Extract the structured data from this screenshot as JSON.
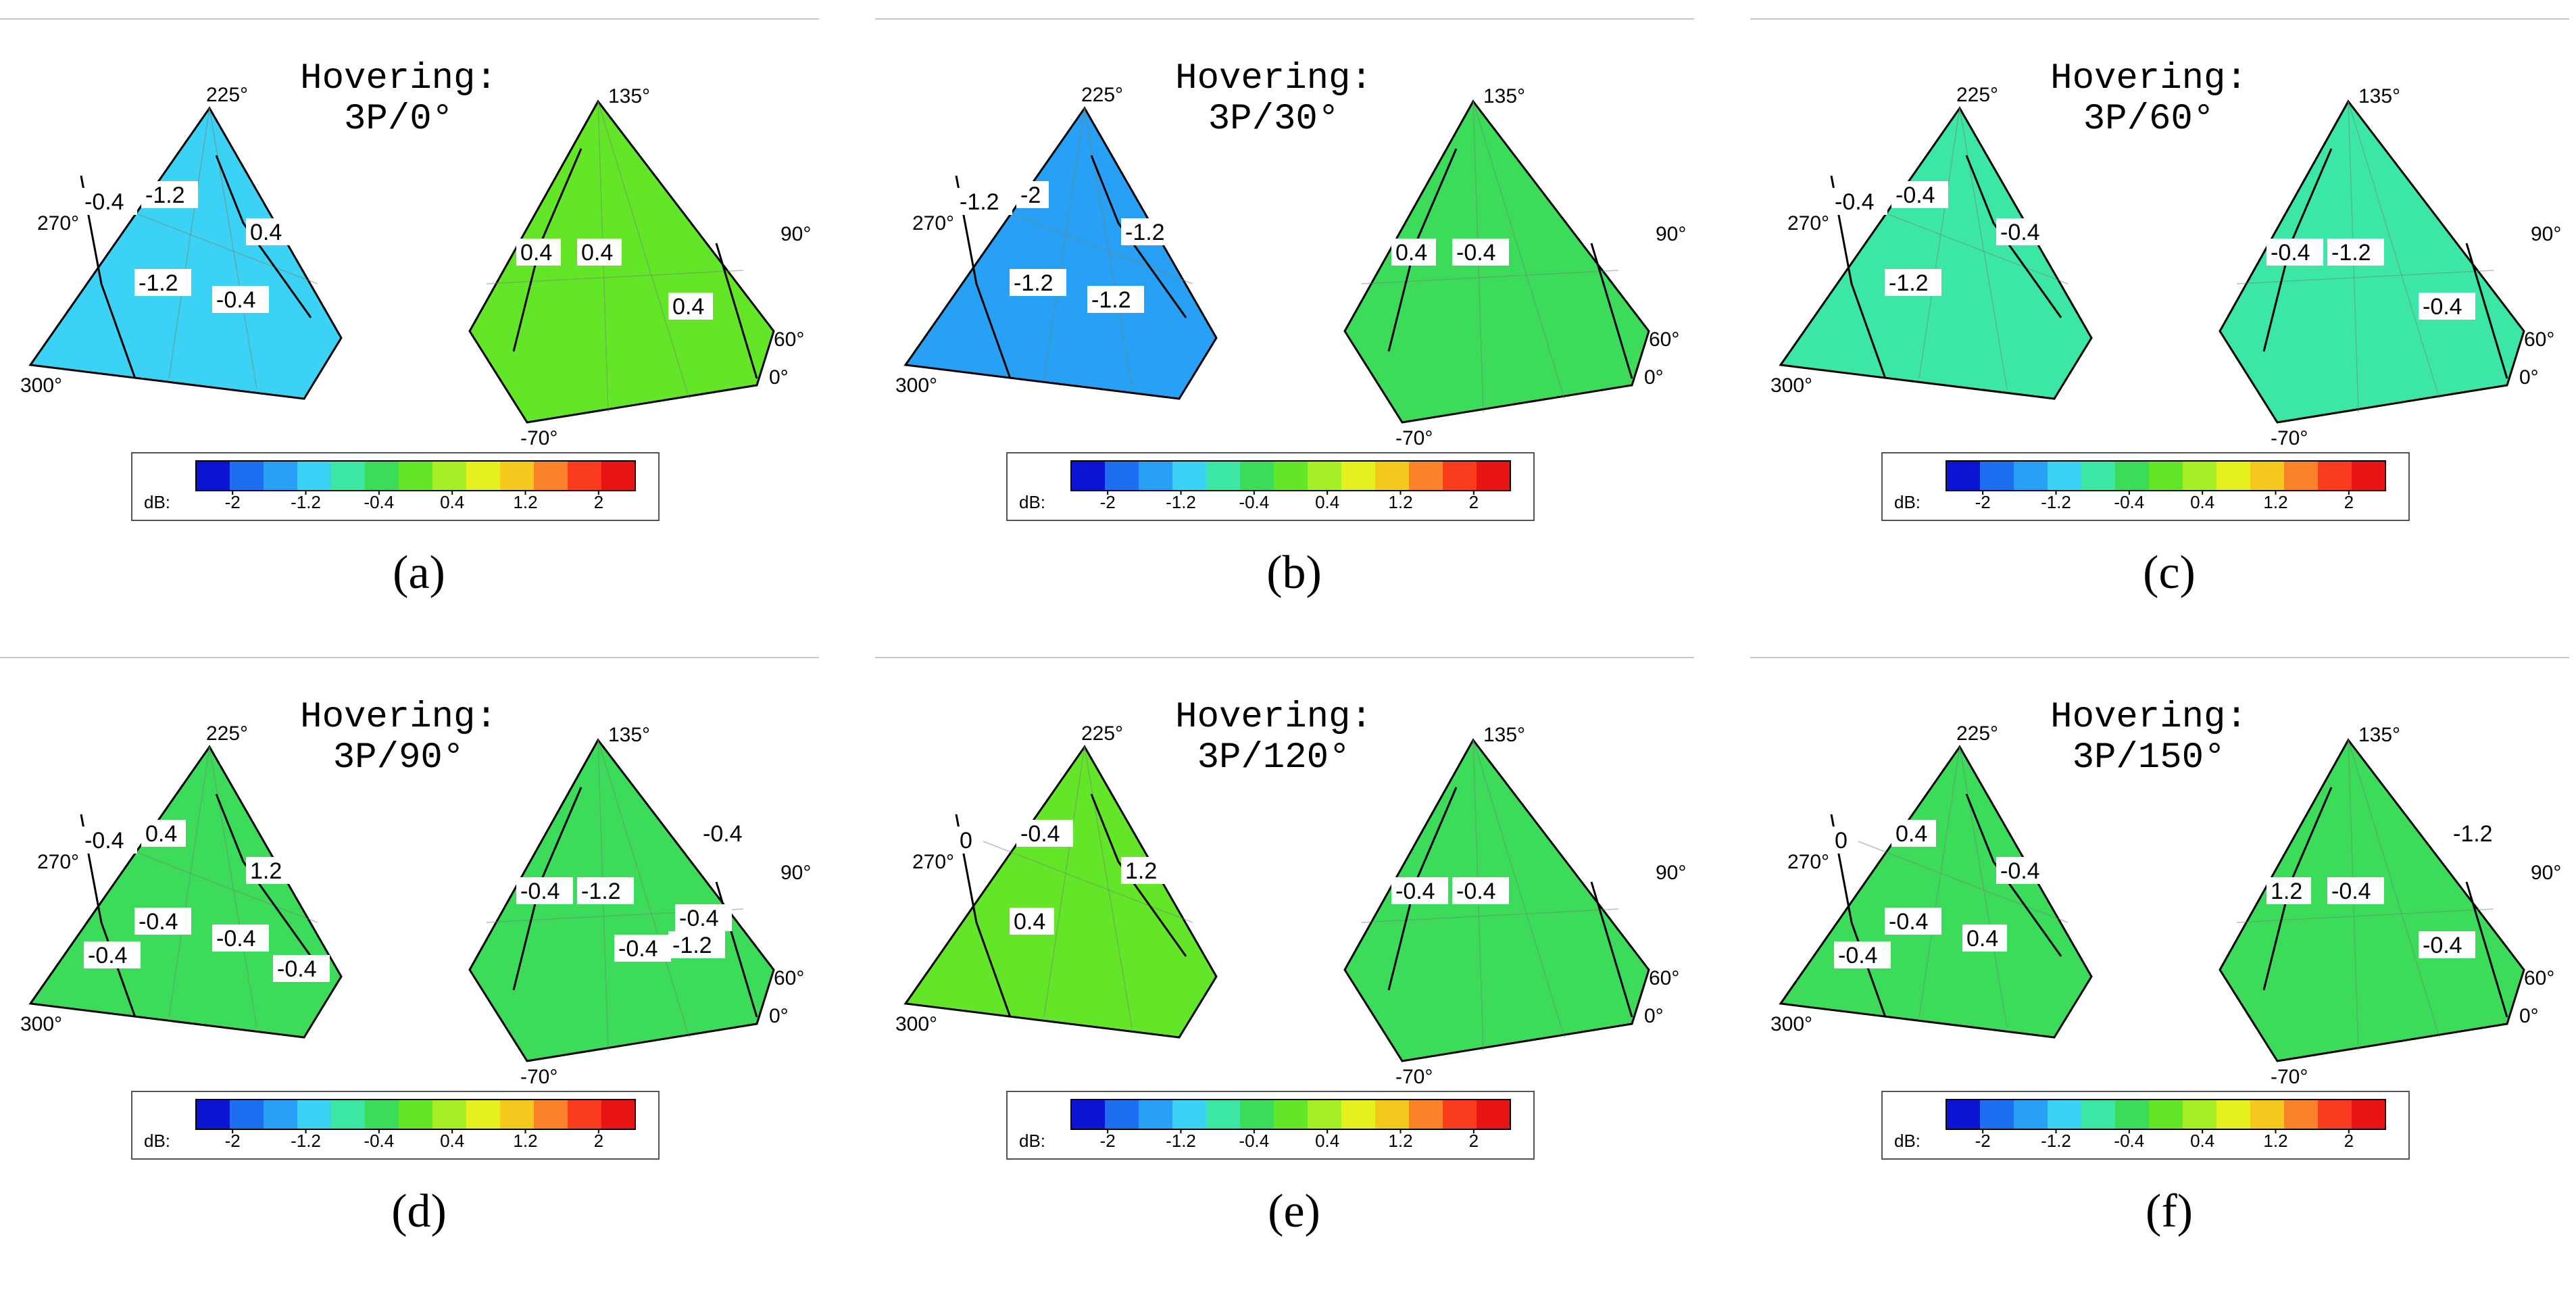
{
  "figure": {
    "colorbar": {
      "unit_label": "dB:",
      "tick_labels": [
        "-2",
        "-1.2",
        "-0.4",
        "0.4",
        "1.2",
        "2"
      ],
      "tick_values": [
        -2,
        -1.2,
        -0.4,
        0.4,
        1.2,
        2
      ],
      "range": [
        -2.4,
        2.4
      ],
      "step": 0.4,
      "colors": [
        "#0a14d2",
        "#1e6ef0",
        "#28a0f5",
        "#3cd2f5",
        "#3ce6a5",
        "#3cdc5a",
        "#64e628",
        "#a5ee28",
        "#e6f01e",
        "#f5c81e",
        "#fa8228",
        "#fa3c1e",
        "#e61414"
      ]
    }
  },
  "chart_data": [
    {
      "type": "heatmap",
      "panel": "a",
      "title_line1": "Hovering:",
      "title_line2": "3P/0°",
      "caption": "(a)",
      "left_angle_labels": [
        "225°",
        "270°",
        "300°"
      ],
      "right_angle_labels": [
        "135°",
        "90°",
        "60°",
        "0°",
        "-70°"
      ],
      "left_contour_labels": [
        "-0.4",
        "-1.2",
        "0.4",
        "-1.2",
        "-0.4"
      ],
      "right_contour_labels": [
        "0.4",
        "0.4",
        "0.4"
      ],
      "left_mean_db": -1.0,
      "right_mean_db": 0.4
    },
    {
      "type": "heatmap",
      "panel": "b",
      "title_line1": "Hovering:",
      "title_line2": "3P/30°",
      "caption": "(b)",
      "left_angle_labels": [
        "225°",
        "270°",
        "300°"
      ],
      "right_angle_labels": [
        "135°",
        "90°",
        "60°",
        "0°",
        "-70°"
      ],
      "left_contour_labels": [
        "-1.2",
        "-2",
        "-1.2",
        "-1.2",
        "-1.2"
      ],
      "right_contour_labels": [
        "0.4",
        "-0.4"
      ],
      "left_mean_db": -1.4,
      "right_mean_db": -0.2
    },
    {
      "type": "heatmap",
      "panel": "c",
      "title_line1": "Hovering:",
      "title_line2": "3P/60°",
      "caption": "(c)",
      "left_angle_labels": [
        "225°",
        "270°",
        "300°"
      ],
      "right_angle_labels": [
        "135°",
        "90°",
        "60°",
        "0°",
        "-70°"
      ],
      "left_contour_labels": [
        "-0.4",
        "-0.4",
        "-0.4",
        "-1.2"
      ],
      "right_contour_labels": [
        "-0.4",
        "-1.2",
        "-0.4"
      ],
      "left_mean_db": -0.5,
      "right_mean_db": -0.6
    },
    {
      "type": "heatmap",
      "panel": "d",
      "title_line1": "Hovering:",
      "title_line2": "3P/90°",
      "caption": "(d)",
      "left_angle_labels": [
        "225°",
        "270°",
        "300°"
      ],
      "right_angle_labels": [
        "135°",
        "90°",
        "60°",
        "0°",
        "-70°"
      ],
      "left_contour_labels": [
        "-0.4",
        "0.4",
        "1.2",
        "-0.4",
        "-0.4",
        "-0.4",
        "-0.4"
      ],
      "right_contour_labels": [
        "-0.4",
        "-1.2",
        "-1.2",
        "-0.4",
        "-0.4",
        "-0.4"
      ],
      "left_mean_db": -0.3,
      "right_mean_db": -0.4
    },
    {
      "type": "heatmap",
      "panel": "e",
      "title_line1": "Hovering:",
      "title_line2": "3P/120°",
      "caption": "(e)",
      "left_angle_labels": [
        "225°",
        "270°",
        "300°"
      ],
      "right_angle_labels": [
        "135°",
        "90°",
        "60°",
        "0°",
        "-70°"
      ],
      "left_contour_labels": [
        "0",
        "-0.4",
        "1.2",
        "0.4"
      ],
      "right_contour_labels": [
        "-0.4",
        "-0.4"
      ],
      "left_mean_db": 0.1,
      "right_mean_db": 0.0
    },
    {
      "type": "heatmap",
      "panel": "f",
      "title_line1": "Hovering:",
      "title_line2": "3P/150°",
      "caption": "(f)",
      "left_angle_labels": [
        "225°",
        "270°",
        "300°"
      ],
      "right_angle_labels": [
        "135°",
        "90°",
        "60°",
        "0°",
        "-70°"
      ],
      "left_contour_labels": [
        "0",
        "0.4",
        "-0.4",
        "-0.4",
        "0.4",
        "-0.4"
      ],
      "right_contour_labels": [
        "1.2",
        "-0.4",
        "-0.4",
        "-1.2"
      ],
      "left_mean_db": 0.0,
      "right_mean_db": -0.1
    }
  ]
}
